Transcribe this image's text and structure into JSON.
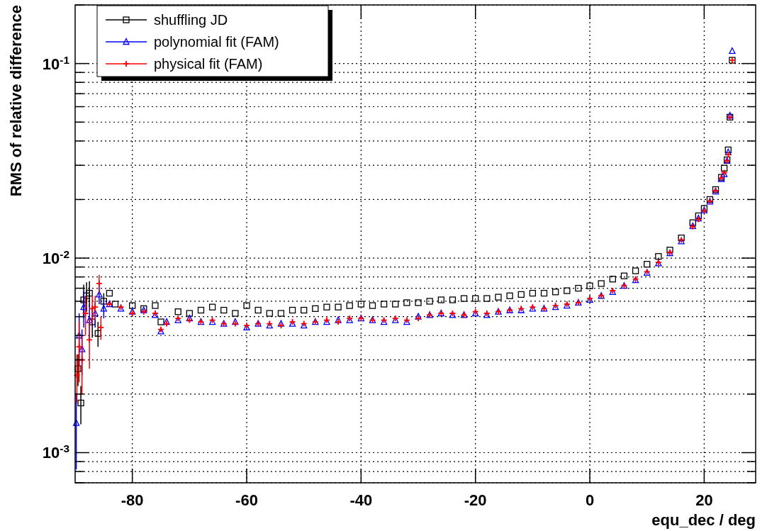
{
  "chart_data": {
    "type": "scatter",
    "xlabel": "equ_dec / deg",
    "ylabel": "RMS of relative difference",
    "log": "y",
    "grid": true,
    "legend": "top left",
    "xlim": [
      -90,
      29
    ],
    "xticks": [
      -80,
      -60,
      -40,
      -20,
      0,
      20
    ],
    "ylim": [
      0.0007,
      0.2
    ],
    "yticks": [
      {
        "value": 0.0007,
        "label": null
      },
      {
        "value": 0.0008,
        "label": null
      },
      {
        "value": 0.0009,
        "label": null
      },
      {
        "value": 0.001,
        "label": "10$^{-3}$"
      },
      {
        "value": 0.002,
        "label": null
      },
      {
        "value": 0.003,
        "label": null
      },
      {
        "value": 0.004,
        "label": null
      },
      {
        "value": 0.005,
        "label": null
      },
      {
        "value": 0.006,
        "label": null
      },
      {
        "value": 0.007,
        "label": null
      },
      {
        "value": 0.008,
        "label": null
      },
      {
        "value": 0.009,
        "label": null
      },
      {
        "value": 0.01,
        "label": "10$^{-2}$"
      },
      {
        "value": 0.02,
        "label": null
      },
      {
        "value": 0.03,
        "label": null
      },
      {
        "value": 0.04,
        "label": null
      },
      {
        "value": 0.05,
        "label": null
      },
      {
        "value": 0.06,
        "label": null
      },
      {
        "value": 0.07,
        "label": null
      },
      {
        "value": 0.08,
        "label": null
      },
      {
        "value": 0.09,
        "label": null
      },
      {
        "value": 0.1,
        "label": "10$^{-1}$"
      },
      {
        "value": 0.2,
        "label": null
      }
    ],
    "series": [
      {
        "name": "shuffling JD",
        "color": "#000000",
        "marker": "square",
        "x": [
          -89.5,
          -89,
          -88.5,
          -88,
          -87.5,
          -87,
          -86,
          -85,
          -84,
          -83,
          -80,
          -78,
          -76,
          -75,
          -72,
          -70,
          -68,
          -66,
          -64,
          -62,
          -60,
          -58,
          -56,
          -54,
          -52,
          -50,
          -48,
          -46,
          -44,
          -42,
          -40,
          -38,
          -36,
          -34,
          -32,
          -30,
          -28,
          -26,
          -24,
          -22,
          -20,
          -18,
          -16,
          -14,
          -12,
          -10,
          -8,
          -6,
          -4,
          -2,
          0,
          2,
          4,
          6,
          8,
          10,
          12,
          14,
          16,
          18,
          19,
          20,
          21,
          22,
          23,
          23.5,
          24,
          24.2,
          24.5,
          24.9
        ],
        "values": [
          0.0027,
          0.0018,
          0.0061,
          0.0064,
          0.0066,
          0.0047,
          0.0041,
          0.006,
          0.0066,
          0.0058,
          0.0057,
          0.0055,
          0.0057,
          0.0047,
          0.0053,
          0.0052,
          0.0054,
          0.0056,
          0.0054,
          0.0052,
          0.0057,
          0.0054,
          0.0052,
          0.0052,
          0.0054,
          0.0054,
          0.0055,
          0.0056,
          0.0056,
          0.0057,
          0.0058,
          0.0057,
          0.0058,
          0.0058,
          0.0059,
          0.0059,
          0.006,
          0.0061,
          0.0061,
          0.0062,
          0.0062,
          0.0062,
          0.0063,
          0.0064,
          0.0065,
          0.0066,
          0.0066,
          0.0067,
          0.0068,
          0.007,
          0.0072,
          0.0074,
          0.0078,
          0.0081,
          0.0086,
          0.0093,
          0.0102,
          0.011,
          0.0127,
          0.0152,
          0.0165,
          0.018,
          0.02,
          0.0225,
          0.026,
          0.029,
          0.032,
          0.036,
          0.053,
          0.104
        ],
        "errors": [
          0.0005,
          0.0004,
          0.0012,
          0.0011,
          0.001,
          0.0008,
          0.0006,
          0.0006,
          null,
          null,
          null,
          null,
          null,
          null,
          null,
          null,
          null,
          null,
          null,
          null,
          null,
          null,
          null,
          null,
          null,
          null,
          null,
          null,
          null,
          null,
          null,
          null,
          null,
          null,
          null,
          null,
          null,
          null,
          null,
          null,
          null,
          null,
          null,
          null,
          null,
          null,
          null,
          null,
          null,
          null,
          null,
          null,
          null,
          null,
          null,
          null,
          null,
          null,
          null,
          null,
          null,
          null,
          null,
          null,
          null,
          null,
          null,
          null,
          null,
          null
        ]
      },
      {
        "name": "polynomial fit (FAM)",
        "color": "#0000ff",
        "marker": "triangle",
        "x": [
          -89.8,
          -89.3,
          -88.8,
          -88.5,
          -87.5,
          -86.5,
          -85.8,
          -85,
          -84,
          -82,
          -80,
          -78,
          -76,
          -75,
          -74,
          -72,
          -70,
          -68,
          -66,
          -64,
          -62,
          -60,
          -58,
          -56,
          -54,
          -52,
          -50,
          -48,
          -46,
          -44,
          -42,
          -40,
          -38,
          -36,
          -34,
          -32,
          -30,
          -28,
          -26,
          -24,
          -22,
          -20,
          -18,
          -16,
          -14,
          -12,
          -10,
          -8,
          -6,
          -4,
          -2,
          0,
          2,
          4,
          6,
          8,
          10,
          12,
          14,
          16,
          18,
          19,
          20,
          21,
          22,
          23,
          23.5,
          24,
          24.2,
          24.5,
          24.9
        ],
        "values": [
          0.00142,
          0.004,
          0.0034,
          0.0056,
          0.0048,
          0.0052,
          0.0065,
          0.0055,
          0.0058,
          0.0055,
          0.0053,
          0.0054,
          0.0051,
          0.0042,
          0.0047,
          0.0048,
          0.0049,
          0.0047,
          0.0047,
          0.0046,
          0.0047,
          0.0044,
          0.0046,
          0.0045,
          0.0046,
          0.0046,
          0.0045,
          0.0047,
          0.0047,
          0.0048,
          0.0048,
          0.0049,
          0.0048,
          0.0047,
          0.0048,
          0.0047,
          0.005,
          0.0051,
          0.0052,
          0.0051,
          0.0051,
          0.0052,
          0.0051,
          0.0053,
          0.0054,
          0.0054,
          0.0055,
          0.0055,
          0.0056,
          0.0057,
          0.0059,
          0.0061,
          0.0064,
          0.0067,
          0.0072,
          0.0077,
          0.0084,
          0.0094,
          0.0106,
          0.0122,
          0.0146,
          0.016,
          0.0176,
          0.0195,
          0.022,
          0.0255,
          0.027,
          0.0316,
          0.035,
          0.054,
          0.116
        ],
        "errors": [
          0.0006,
          0.0012,
          0.0009,
          0.0012,
          0.001,
          0.0008,
          0.0007,
          0.0006,
          null,
          null,
          null,
          null,
          null,
          null,
          null,
          null,
          null,
          null,
          null,
          null,
          null,
          null,
          null,
          null,
          null,
          null,
          null,
          null,
          null,
          null,
          null,
          null,
          null,
          null,
          null,
          null,
          null,
          null,
          null,
          null,
          null,
          null,
          null,
          null,
          null,
          null,
          null,
          null,
          null,
          null,
          null,
          null,
          null,
          null,
          null,
          null,
          null,
          null,
          null,
          null,
          null,
          null,
          null,
          null,
          null,
          null,
          null,
          null,
          null,
          null,
          null
        ]
      },
      {
        "name": "physical fit (FAM)",
        "color": "#ff0000",
        "marker": "cross",
        "x": [
          -89.7,
          -89.3,
          -88.8,
          -88.2,
          -87.5,
          -87,
          -86.5,
          -85.8,
          -85.5,
          -84,
          -82,
          -80,
          -78,
          -76,
          -75,
          -74,
          -72,
          -70,
          -68,
          -66,
          -64,
          -62,
          -60,
          -58,
          -56,
          -54,
          -52,
          -50,
          -48,
          -46,
          -44,
          -42,
          -40,
          -38,
          -36,
          -34,
          -32,
          -30,
          -28,
          -26,
          -24,
          -22,
          -20,
          -18,
          -16,
          -14,
          -12,
          -10,
          -8,
          -6,
          -4,
          -2,
          0,
          2,
          4,
          6,
          8,
          10,
          12,
          14,
          16,
          18,
          19,
          20,
          21,
          22,
          23,
          23.5,
          24,
          24.2,
          24.5,
          24.9
        ],
        "values": [
          0.0025,
          0.0035,
          0.003,
          0.0052,
          0.0038,
          0.0055,
          0.0056,
          0.0074,
          0.0044,
          0.0058,
          0.0056,
          0.0052,
          0.0053,
          0.0052,
          0.0043,
          0.0046,
          0.0049,
          0.0048,
          0.0047,
          0.0048,
          0.0046,
          0.0046,
          0.0045,
          0.0046,
          0.0046,
          0.0045,
          0.0047,
          0.0046,
          0.0047,
          0.0048,
          0.0047,
          0.0049,
          0.0049,
          0.0048,
          0.0048,
          0.0049,
          0.0048,
          0.0049,
          0.0051,
          0.0052,
          0.0052,
          0.0051,
          0.0053,
          0.0052,
          0.0053,
          0.0054,
          0.0055,
          0.0056,
          0.0055,
          0.0057,
          0.0058,
          0.0059,
          0.0062,
          0.0064,
          0.0068,
          0.0072,
          0.0078,
          0.0085,
          0.0095,
          0.0107,
          0.0124,
          0.0145,
          0.0158,
          0.0175,
          0.0196,
          0.0222,
          0.0258,
          0.0275,
          0.0316,
          0.034,
          0.053,
          0.104
        ],
        "errors": [
          0.0007,
          0.0012,
          0.001,
          0.0012,
          0.0011,
          0.0009,
          0.0008,
          0.0008,
          0.0006,
          null,
          null,
          null,
          null,
          null,
          null,
          null,
          null,
          null,
          null,
          null,
          null,
          null,
          null,
          null,
          null,
          null,
          null,
          null,
          null,
          null,
          null,
          null,
          null,
          null,
          null,
          null,
          null,
          null,
          null,
          null,
          null,
          null,
          null,
          null,
          null,
          null,
          null,
          null,
          null,
          null,
          null,
          null,
          null,
          null,
          null,
          null,
          null,
          null,
          null,
          null,
          null,
          null,
          null,
          null,
          null,
          null,
          null,
          null,
          null,
          null,
          null,
          null
        ]
      }
    ]
  }
}
